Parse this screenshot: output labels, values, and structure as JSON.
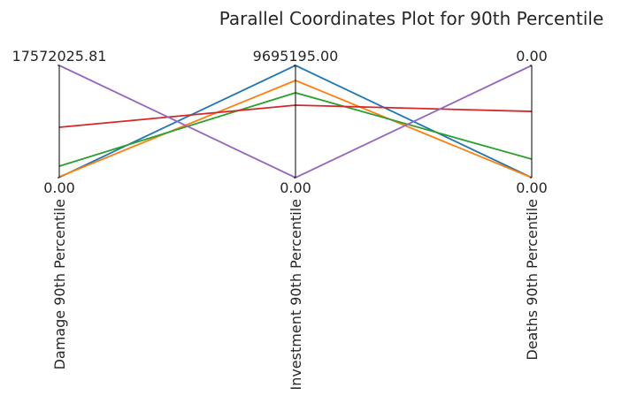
{
  "chart_data": {
    "type": "parallel",
    "title": "Parallel Coordinates Plot for 90th Percentile",
    "axes": [
      {
        "label": "Damage 90th Percentile",
        "lim": [
          0,
          17572025.81
        ],
        "ticks": [
          {
            "value": 0,
            "label": "0.00"
          },
          {
            "value": 17572025.81,
            "label": "17572025.81"
          }
        ]
      },
      {
        "label": "Investment 90th Percentile",
        "lim": [
          0,
          9695195.0
        ],
        "ticks": [
          {
            "value": 0,
            "label": "0.00"
          },
          {
            "value": 9695195.0,
            "label": "9695195.00"
          }
        ]
      },
      {
        "label": "Deaths 90th Percentile",
        "lim": [
          0,
          0.004
        ],
        "ticks": [
          {
            "value": 0,
            "label": "0.00"
          },
          {
            "value": 0.004,
            "label": "0.00"
          }
        ]
      }
    ],
    "series": [
      {
        "color": "#1f77b4",
        "values": [
          50000,
          9695195.0,
          0
        ]
      },
      {
        "color": "#ff7f0e",
        "values": [
          140000,
          8396000,
          0
        ]
      },
      {
        "color": "#2ca02c",
        "values": [
          1800000,
          7330000,
          0.00066
        ]
      },
      {
        "color": "#d62728",
        "values": [
          7890000,
          6260000,
          0.00236
        ]
      },
      {
        "color": "#9467bd",
        "values": [
          17572025.81,
          0,
          0.004
        ]
      }
    ]
  }
}
